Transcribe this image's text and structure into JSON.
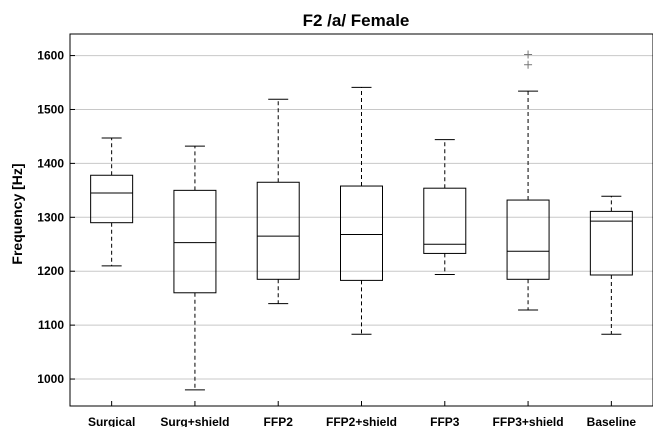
{
  "chart_data": {
    "type": "box",
    "title": "F2 /a/ Female",
    "xlabel": "",
    "ylabel": "Frequency [Hz]",
    "ylim": [
      950,
      1640
    ],
    "yticks": [
      1000,
      1100,
      1200,
      1300,
      1400,
      1500,
      1600
    ],
    "grid": "horizontal",
    "categories": [
      "Surgical",
      "Surg+shield",
      "FFP2",
      "FFP2+shield",
      "FFP3",
      "FFP3+shield",
      "Baseline"
    ],
    "series": [
      {
        "boxes": [
          {
            "category": "Surgical",
            "whisker_low": 1210,
            "q1": 1290,
            "median": 1345,
            "q3": 1378,
            "whisker_high": 1447,
            "outliers": []
          },
          {
            "category": "Surg+shield",
            "whisker_low": 980,
            "q1": 1160,
            "median": 1253,
            "q3": 1350,
            "whisker_high": 1432,
            "outliers": []
          },
          {
            "category": "FFP2",
            "whisker_low": 1140,
            "q1": 1185,
            "median": 1265,
            "q3": 1365,
            "whisker_high": 1519,
            "outliers": []
          },
          {
            "category": "FFP2+shield",
            "whisker_low": 1083,
            "q1": 1183,
            "median": 1268,
            "q3": 1358,
            "whisker_high": 1541,
            "outliers": []
          },
          {
            "category": "FFP3",
            "whisker_low": 1194,
            "q1": 1233,
            "median": 1250,
            "q3": 1354,
            "whisker_high": 1444,
            "outliers": []
          },
          {
            "category": "FFP3+shield",
            "whisker_low": 1128,
            "q1": 1185,
            "median": 1237,
            "q3": 1332,
            "whisker_high": 1534,
            "outliers": [
              1583,
              1602
            ]
          },
          {
            "category": "Baseline",
            "whisker_low": 1083,
            "q1": 1193,
            "median": 1293,
            "q3": 1311,
            "whisker_high": 1339,
            "outliers": []
          }
        ]
      }
    ],
    "colors": {
      "box": "#000000",
      "grid": "#c8c8c8",
      "outlier": "#777777"
    }
  }
}
